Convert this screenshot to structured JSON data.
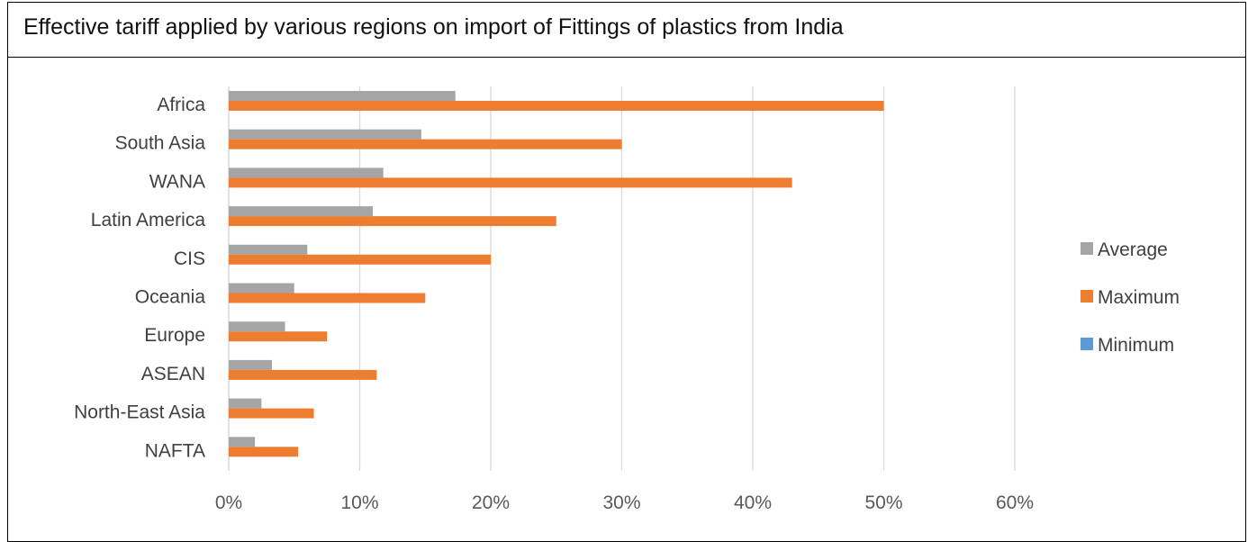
{
  "chart_data": {
    "type": "bar",
    "orientation": "horizontal",
    "title": "Effective tariff applied by various regions on import of Fittings of plastics from India",
    "categories": [
      "Africa",
      "South Asia",
      "WANA",
      "Latin America",
      "CIS",
      "Oceania",
      "Europe",
      "ASEAN",
      "North-East Asia",
      "NAFTA"
    ],
    "series": [
      {
        "name": "Average",
        "color": "#A5A5A5",
        "values": [
          17.3,
          14.7,
          11.8,
          11.0,
          6.0,
          5.0,
          4.3,
          3.3,
          2.5,
          2.0
        ]
      },
      {
        "name": "Maximum",
        "color": "#ED7D31",
        "values": [
          50.0,
          30.0,
          43.0,
          25.0,
          20.0,
          15.0,
          7.5,
          11.3,
          6.5,
          5.3
        ]
      },
      {
        "name": "Minimum",
        "color": "#5B9BD5",
        "values": [
          0,
          0,
          0,
          0,
          0,
          0,
          0,
          0,
          0,
          0
        ]
      }
    ],
    "xlim": [
      0,
      60
    ],
    "x_ticks": [
      "0%",
      "10%",
      "20%",
      "30%",
      "40%",
      "50%",
      "60%"
    ],
    "x_tick_values": [
      0,
      10,
      20,
      30,
      40,
      50,
      60
    ],
    "grid": true,
    "legend_position": "right"
  }
}
